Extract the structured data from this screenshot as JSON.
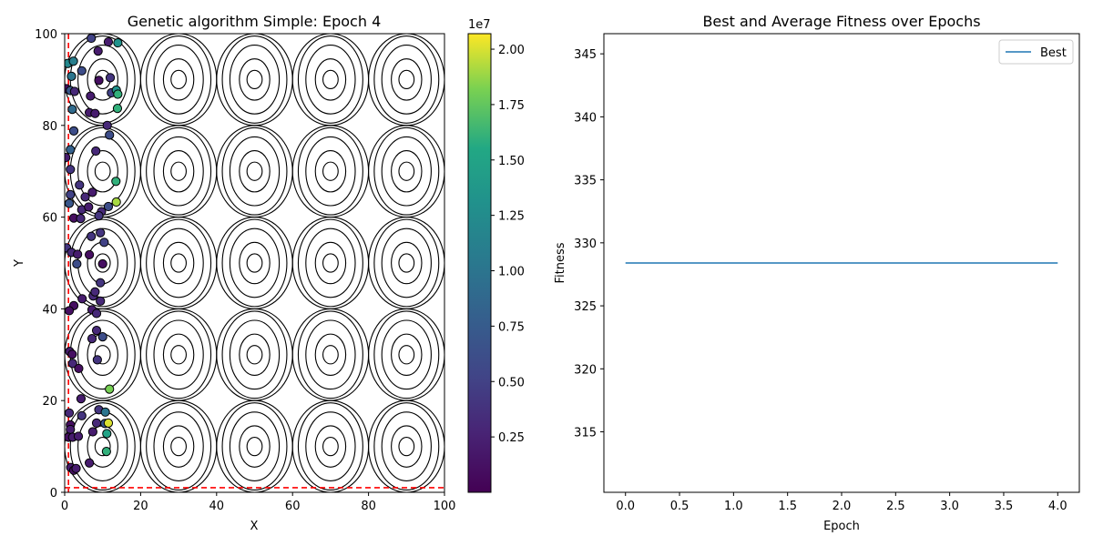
{
  "chart_data": [
    {
      "type": "scatter",
      "title": "Genetic algorithm Simple: Epoch 4",
      "xlabel": "X",
      "ylabel": "Y",
      "xlim": [
        0,
        100
      ],
      "ylim": [
        0,
        100
      ],
      "x_ticks": [
        "0",
        "20",
        "40",
        "60",
        "80",
        "100"
      ],
      "y_ticks": [
        "0",
        "20",
        "40",
        "60",
        "80",
        "100"
      ],
      "contour_centers": {
        "x": [
          10,
          30,
          50,
          70,
          90
        ],
        "y": [
          10,
          30,
          50,
          70,
          90
        ],
        "ring_radii": [
          [
            2,
            2
          ],
          [
            4,
            4.5
          ],
          [
            6.5,
            7.5
          ],
          [
            8.5,
            9.5
          ],
          [
            10,
            10
          ]
        ]
      },
      "boundary_lines": {
        "x": 1,
        "y": 1,
        "color": "#ff0000",
        "style": "dashed"
      },
      "colorbar": {
        "multiplier": "1e7",
        "range": [
          0,
          20.7
        ],
        "ticks": [
          "0.25",
          "0.50",
          "0.75",
          "1.00",
          "1.25",
          "1.50",
          "1.75",
          "2.00"
        ],
        "tick_values": [
          0.25,
          0.5,
          0.75,
          1.0,
          1.25,
          1.5,
          1.75,
          2.0
        ],
        "colormap": "viridis"
      },
      "points": [
        {
          "x": 7,
          "y": 99,
          "c": 0.5
        },
        {
          "x": 11.5,
          "y": 98.2,
          "c": 0.2
        },
        {
          "x": 14,
          "y": 98,
          "c": 1.3
        },
        {
          "x": 0.8,
          "y": 93.5,
          "c": 1.2
        },
        {
          "x": 2.3,
          "y": 94,
          "c": 1.1
        },
        {
          "x": 4.5,
          "y": 91.9,
          "c": 0.6
        },
        {
          "x": 8.8,
          "y": 96.2,
          "c": 0.2
        },
        {
          "x": 1.8,
          "y": 90.7,
          "c": 1.0
        },
        {
          "x": 9,
          "y": 89.8,
          "c": 0.1
        },
        {
          "x": 12,
          "y": 90.4,
          "c": 0.4
        },
        {
          "x": 0.5,
          "y": 88,
          "c": 0.1
        },
        {
          "x": 1.5,
          "y": 87.6,
          "c": 0.7
        },
        {
          "x": 2.6,
          "y": 87.4,
          "c": 0.3
        },
        {
          "x": 6.8,
          "y": 86.4,
          "c": 0.2
        },
        {
          "x": 12.3,
          "y": 87.1,
          "c": 0.5
        },
        {
          "x": 13.6,
          "y": 87.7,
          "c": 1.3
        },
        {
          "x": 14,
          "y": 86.8,
          "c": 1.6
        },
        {
          "x": 2,
          "y": 83.5,
          "c": 0.9
        },
        {
          "x": 6.5,
          "y": 82.8,
          "c": 0.2
        },
        {
          "x": 8,
          "y": 82.6,
          "c": 0.2
        },
        {
          "x": 13.9,
          "y": 83.7,
          "c": 1.6
        },
        {
          "x": 11.2,
          "y": 80,
          "c": 0.3
        },
        {
          "x": 2.4,
          "y": 78.8,
          "c": 0.6
        },
        {
          "x": 11.8,
          "y": 77.9,
          "c": 0.6
        },
        {
          "x": 1.5,
          "y": 74.7,
          "c": 0.8
        },
        {
          "x": 8.2,
          "y": 74.4,
          "c": 0.3
        },
        {
          "x": 1.5,
          "y": 70.4,
          "c": 0.4
        },
        {
          "x": 0.3,
          "y": 73,
          "c": 0.2
        },
        {
          "x": 3.9,
          "y": 67,
          "c": 0.4
        },
        {
          "x": 13.5,
          "y": 67.8,
          "c": 1.6
        },
        {
          "x": 1.5,
          "y": 64.9,
          "c": 0.5
        },
        {
          "x": 5.4,
          "y": 64.4,
          "c": 0.3
        },
        {
          "x": 7.3,
          "y": 65.4,
          "c": 0.2
        },
        {
          "x": 1.2,
          "y": 63,
          "c": 0.7
        },
        {
          "x": 4.5,
          "y": 61.6,
          "c": 0.3
        },
        {
          "x": 6.3,
          "y": 62.2,
          "c": 0.2
        },
        {
          "x": 9.7,
          "y": 61.2,
          "c": 0.3
        },
        {
          "x": 11.5,
          "y": 62.3,
          "c": 0.6
        },
        {
          "x": 13.6,
          "y": 63.3,
          "c": 1.9
        },
        {
          "x": 2.4,
          "y": 59.8,
          "c": 0.1
        },
        {
          "x": 4.2,
          "y": 59.7,
          "c": 0.3
        },
        {
          "x": 9,
          "y": 60.3,
          "c": 0.4
        },
        {
          "x": 7,
          "y": 55.8,
          "c": 0.4
        },
        {
          "x": 9.4,
          "y": 56.6,
          "c": 0.4
        },
        {
          "x": 10.4,
          "y": 54.5,
          "c": 0.5
        },
        {
          "x": 0.5,
          "y": 53.3,
          "c": 0.4
        },
        {
          "x": 1.8,
          "y": 52.3,
          "c": 0.3
        },
        {
          "x": 3.4,
          "y": 51.9,
          "c": 0.2
        },
        {
          "x": 6.5,
          "y": 51.8,
          "c": 0.1
        },
        {
          "x": 3.2,
          "y": 49.8,
          "c": 0.6
        },
        {
          "x": 10,
          "y": 49.8,
          "c": 0.1
        },
        {
          "x": 9.4,
          "y": 45.7,
          "c": 0.4
        },
        {
          "x": 4.6,
          "y": 42.2,
          "c": 0.2
        },
        {
          "x": 7.5,
          "y": 42.8,
          "c": 0.3
        },
        {
          "x": 8,
          "y": 43.7,
          "c": 0.3
        },
        {
          "x": 9.4,
          "y": 41.7,
          "c": 0.3
        },
        {
          "x": 2.4,
          "y": 40.7,
          "c": 0.1
        },
        {
          "x": 1.2,
          "y": 39.6,
          "c": 0.1
        },
        {
          "x": 7.2,
          "y": 39.8,
          "c": 0.2
        },
        {
          "x": 8.4,
          "y": 39,
          "c": 0.3
        },
        {
          "x": 8.4,
          "y": 35.3,
          "c": 0.3
        },
        {
          "x": 7.2,
          "y": 33.5,
          "c": 0.3
        },
        {
          "x": 10,
          "y": 33.9,
          "c": 0.6
        },
        {
          "x": 1.3,
          "y": 30.7,
          "c": 0.2
        },
        {
          "x": 2,
          "y": 30.1,
          "c": 0.1
        },
        {
          "x": 8.6,
          "y": 28.9,
          "c": 0.4
        },
        {
          "x": 2.1,
          "y": 28.1,
          "c": 0.3
        },
        {
          "x": 3.7,
          "y": 27,
          "c": 0.1
        },
        {
          "x": 11.8,
          "y": 22.5,
          "c": 1.8
        },
        {
          "x": 4.3,
          "y": 20.4,
          "c": 0.2
        },
        {
          "x": 9,
          "y": 18,
          "c": 0.4
        },
        {
          "x": 10.7,
          "y": 17.5,
          "c": 1.0
        },
        {
          "x": 1.2,
          "y": 17.3,
          "c": 0.3
        },
        {
          "x": 4.5,
          "y": 16.7,
          "c": 0.4
        },
        {
          "x": 8.4,
          "y": 15.1,
          "c": 0.3
        },
        {
          "x": 10.6,
          "y": 15,
          "c": 0.7
        },
        {
          "x": 11.5,
          "y": 15.1,
          "c": 2.0
        },
        {
          "x": 1.5,
          "y": 14.7,
          "c": 0.1
        },
        {
          "x": 1.5,
          "y": 13.7,
          "c": 0.2
        },
        {
          "x": 7.4,
          "y": 13.2,
          "c": 0.2
        },
        {
          "x": 11.1,
          "y": 12.8,
          "c": 1.5
        },
        {
          "x": 1,
          "y": 12,
          "c": 0.1
        },
        {
          "x": 2.1,
          "y": 12,
          "c": 0.2
        },
        {
          "x": 3.6,
          "y": 12.2,
          "c": 0.2
        },
        {
          "x": 11,
          "y": 8.9,
          "c": 1.6
        },
        {
          "x": 6.5,
          "y": 6.4,
          "c": 0.2
        },
        {
          "x": 1.6,
          "y": 5.4,
          "c": 0.2
        },
        {
          "x": 2.4,
          "y": 4.8,
          "c": 0.1
        },
        {
          "x": 3,
          "y": 5.2,
          "c": 0.2
        }
      ]
    },
    {
      "type": "line",
      "title": "Best and Average Fitness over Epochs",
      "xlabel": "Epoch",
      "ylabel": "Fitness",
      "xlim": [
        -0.2,
        4.2
      ],
      "ylim": [
        310.2,
        346.6
      ],
      "x_ticks": [
        "0.0",
        "0.5",
        "1.0",
        "1.5",
        "2.0",
        "2.5",
        "3.0",
        "3.5",
        "4.0"
      ],
      "x_tick_values": [
        0,
        0.5,
        1,
        1.5,
        2,
        2.5,
        3,
        3.5,
        4
      ],
      "y_ticks": [
        "315",
        "320",
        "325",
        "330",
        "335",
        "340",
        "345"
      ],
      "y_tick_values": [
        315,
        320,
        325,
        330,
        335,
        340,
        345
      ],
      "legend": "top-right",
      "series": [
        {
          "name": "Best",
          "color": "#1f77b4",
          "x": [
            0,
            1,
            2,
            3,
            4
          ],
          "values": [
            328.4,
            328.4,
            328.4,
            328.4,
            328.4
          ]
        }
      ]
    }
  ]
}
